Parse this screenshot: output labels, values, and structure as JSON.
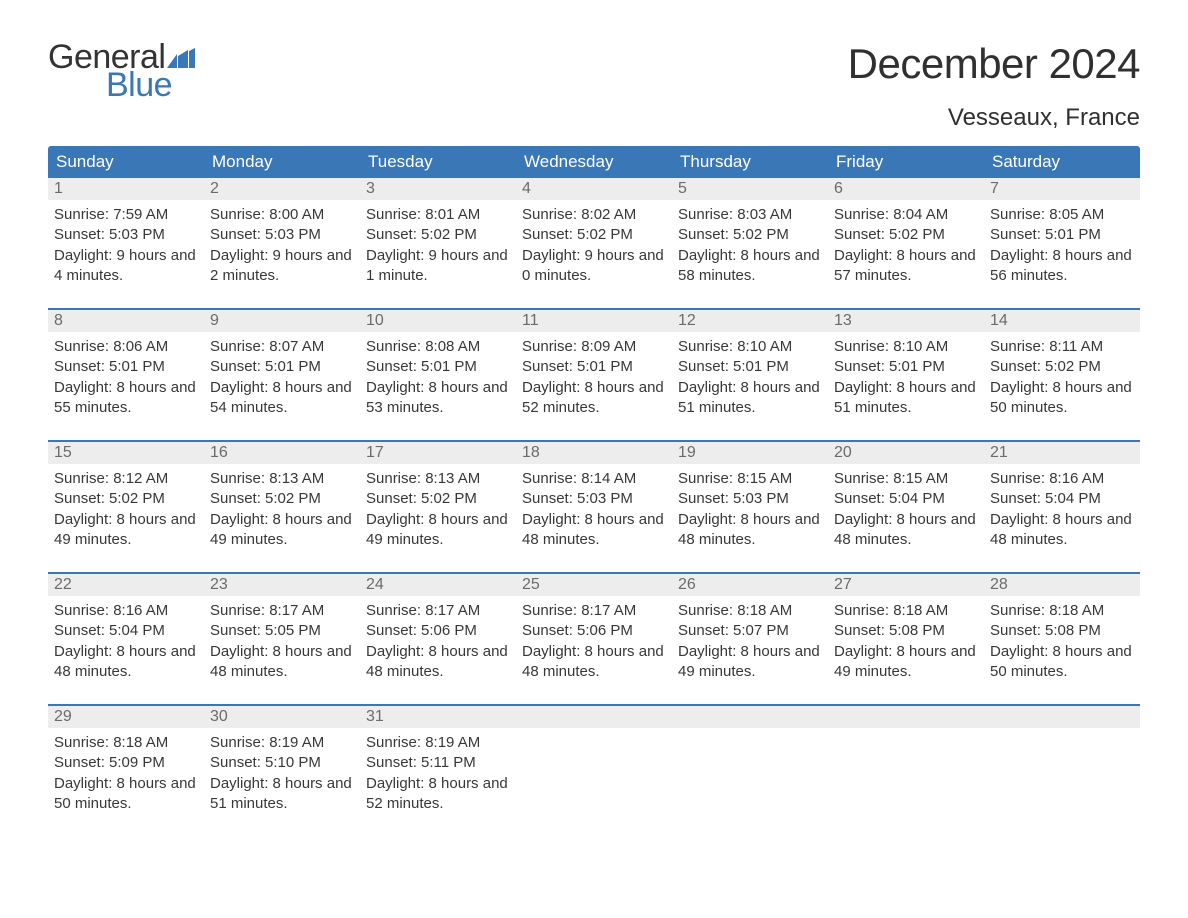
{
  "brand": {
    "general": "General",
    "blue": "Blue"
  },
  "title": "December 2024",
  "location": "Vesseaux, France",
  "colors": {
    "header_bg": "#3a77b7",
    "header_text": "#ffffff",
    "daynum_bg": "#ededed",
    "daynum_text": "#6b6b6b",
    "body_text": "#383838",
    "rule": "#3a77b7",
    "page_bg": "#ffffff"
  },
  "font": {
    "family": "Arial",
    "title_size_pt": 32,
    "location_size_pt": 18,
    "header_size_pt": 13,
    "body_size_pt": 11
  },
  "day_names": [
    "Sunday",
    "Monday",
    "Tuesday",
    "Wednesday",
    "Thursday",
    "Friday",
    "Saturday"
  ],
  "labels": {
    "sunrise": "Sunrise: ",
    "sunset": "Sunset: ",
    "daylight": "Daylight: "
  },
  "weeks": [
    [
      {
        "n": "1",
        "sr": "7:59 AM",
        "ss": "5:03 PM",
        "dl": "9 hours and 4 minutes."
      },
      {
        "n": "2",
        "sr": "8:00 AM",
        "ss": "5:03 PM",
        "dl": "9 hours and 2 minutes."
      },
      {
        "n": "3",
        "sr": "8:01 AM",
        "ss": "5:02 PM",
        "dl": "9 hours and 1 minute."
      },
      {
        "n": "4",
        "sr": "8:02 AM",
        "ss": "5:02 PM",
        "dl": "9 hours and 0 minutes."
      },
      {
        "n": "5",
        "sr": "8:03 AM",
        "ss": "5:02 PM",
        "dl": "8 hours and 58 minutes."
      },
      {
        "n": "6",
        "sr": "8:04 AM",
        "ss": "5:02 PM",
        "dl": "8 hours and 57 minutes."
      },
      {
        "n": "7",
        "sr": "8:05 AM",
        "ss": "5:01 PM",
        "dl": "8 hours and 56 minutes."
      }
    ],
    [
      {
        "n": "8",
        "sr": "8:06 AM",
        "ss": "5:01 PM",
        "dl": "8 hours and 55 minutes."
      },
      {
        "n": "9",
        "sr": "8:07 AM",
        "ss": "5:01 PM",
        "dl": "8 hours and 54 minutes."
      },
      {
        "n": "10",
        "sr": "8:08 AM",
        "ss": "5:01 PM",
        "dl": "8 hours and 53 minutes."
      },
      {
        "n": "11",
        "sr": "8:09 AM",
        "ss": "5:01 PM",
        "dl": "8 hours and 52 minutes."
      },
      {
        "n": "12",
        "sr": "8:10 AM",
        "ss": "5:01 PM",
        "dl": "8 hours and 51 minutes."
      },
      {
        "n": "13",
        "sr": "8:10 AM",
        "ss": "5:01 PM",
        "dl": "8 hours and 51 minutes."
      },
      {
        "n": "14",
        "sr": "8:11 AM",
        "ss": "5:02 PM",
        "dl": "8 hours and 50 minutes."
      }
    ],
    [
      {
        "n": "15",
        "sr": "8:12 AM",
        "ss": "5:02 PM",
        "dl": "8 hours and 49 minutes."
      },
      {
        "n": "16",
        "sr": "8:13 AM",
        "ss": "5:02 PM",
        "dl": "8 hours and 49 minutes."
      },
      {
        "n": "17",
        "sr": "8:13 AM",
        "ss": "5:02 PM",
        "dl": "8 hours and 49 minutes."
      },
      {
        "n": "18",
        "sr": "8:14 AM",
        "ss": "5:03 PM",
        "dl": "8 hours and 48 minutes."
      },
      {
        "n": "19",
        "sr": "8:15 AM",
        "ss": "5:03 PM",
        "dl": "8 hours and 48 minutes."
      },
      {
        "n": "20",
        "sr": "8:15 AM",
        "ss": "5:04 PM",
        "dl": "8 hours and 48 minutes."
      },
      {
        "n": "21",
        "sr": "8:16 AM",
        "ss": "5:04 PM",
        "dl": "8 hours and 48 minutes."
      }
    ],
    [
      {
        "n": "22",
        "sr": "8:16 AM",
        "ss": "5:04 PM",
        "dl": "8 hours and 48 minutes."
      },
      {
        "n": "23",
        "sr": "8:17 AM",
        "ss": "5:05 PM",
        "dl": "8 hours and 48 minutes."
      },
      {
        "n": "24",
        "sr": "8:17 AM",
        "ss": "5:06 PM",
        "dl": "8 hours and 48 minutes."
      },
      {
        "n": "25",
        "sr": "8:17 AM",
        "ss": "5:06 PM",
        "dl": "8 hours and 48 minutes."
      },
      {
        "n": "26",
        "sr": "8:18 AM",
        "ss": "5:07 PM",
        "dl": "8 hours and 49 minutes."
      },
      {
        "n": "27",
        "sr": "8:18 AM",
        "ss": "5:08 PM",
        "dl": "8 hours and 49 minutes."
      },
      {
        "n": "28",
        "sr": "8:18 AM",
        "ss": "5:08 PM",
        "dl": "8 hours and 50 minutes."
      }
    ],
    [
      {
        "n": "29",
        "sr": "8:18 AM",
        "ss": "5:09 PM",
        "dl": "8 hours and 50 minutes."
      },
      {
        "n": "30",
        "sr": "8:19 AM",
        "ss": "5:10 PM",
        "dl": "8 hours and 51 minutes."
      },
      {
        "n": "31",
        "sr": "8:19 AM",
        "ss": "5:11 PM",
        "dl": "8 hours and 52 minutes."
      },
      null,
      null,
      null,
      null
    ]
  ]
}
